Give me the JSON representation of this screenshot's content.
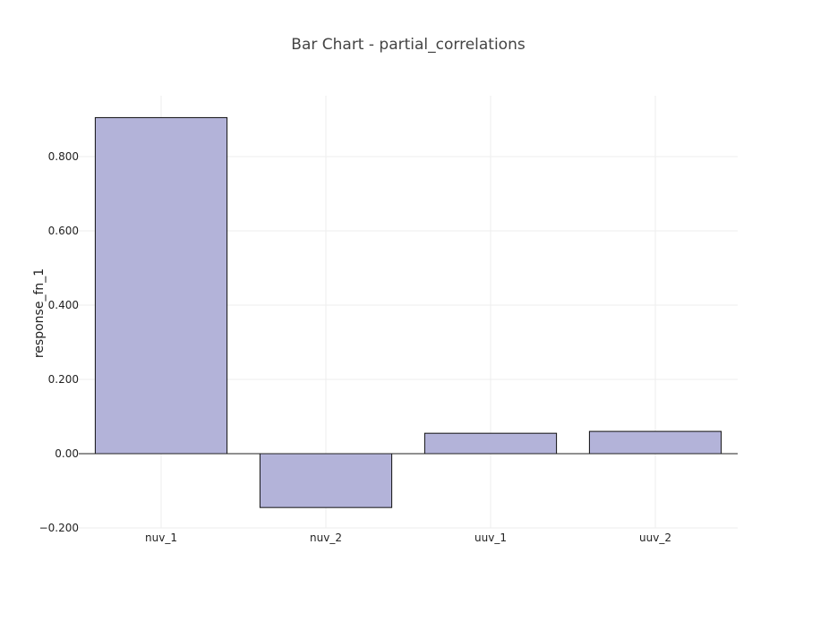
{
  "chart_data": {
    "type": "bar",
    "title": "Bar Chart - partial_correlations",
    "xlabel": "",
    "ylabel": "response_fn_1",
    "categories": [
      "nuv_1",
      "nuv_2",
      "uuv_1",
      "uuv_2"
    ],
    "values": [
      0.905,
      -0.145,
      0.055,
      0.06
    ],
    "ylim": [
      -0.2,
      0.95
    ],
    "yticks": [
      -0.2,
      0.0,
      0.2,
      0.4,
      0.6,
      0.8
    ],
    "ytick_labels": [
      "−0.200",
      "0.00",
      "0.200",
      "0.400",
      "0.600",
      "0.800"
    ],
    "grid": true,
    "legend": "none",
    "colors": {
      "bar_fill": "#b3b3d9",
      "bar_edge": "#111111",
      "grid": "#eeeeee",
      "title": "#444444"
    }
  }
}
